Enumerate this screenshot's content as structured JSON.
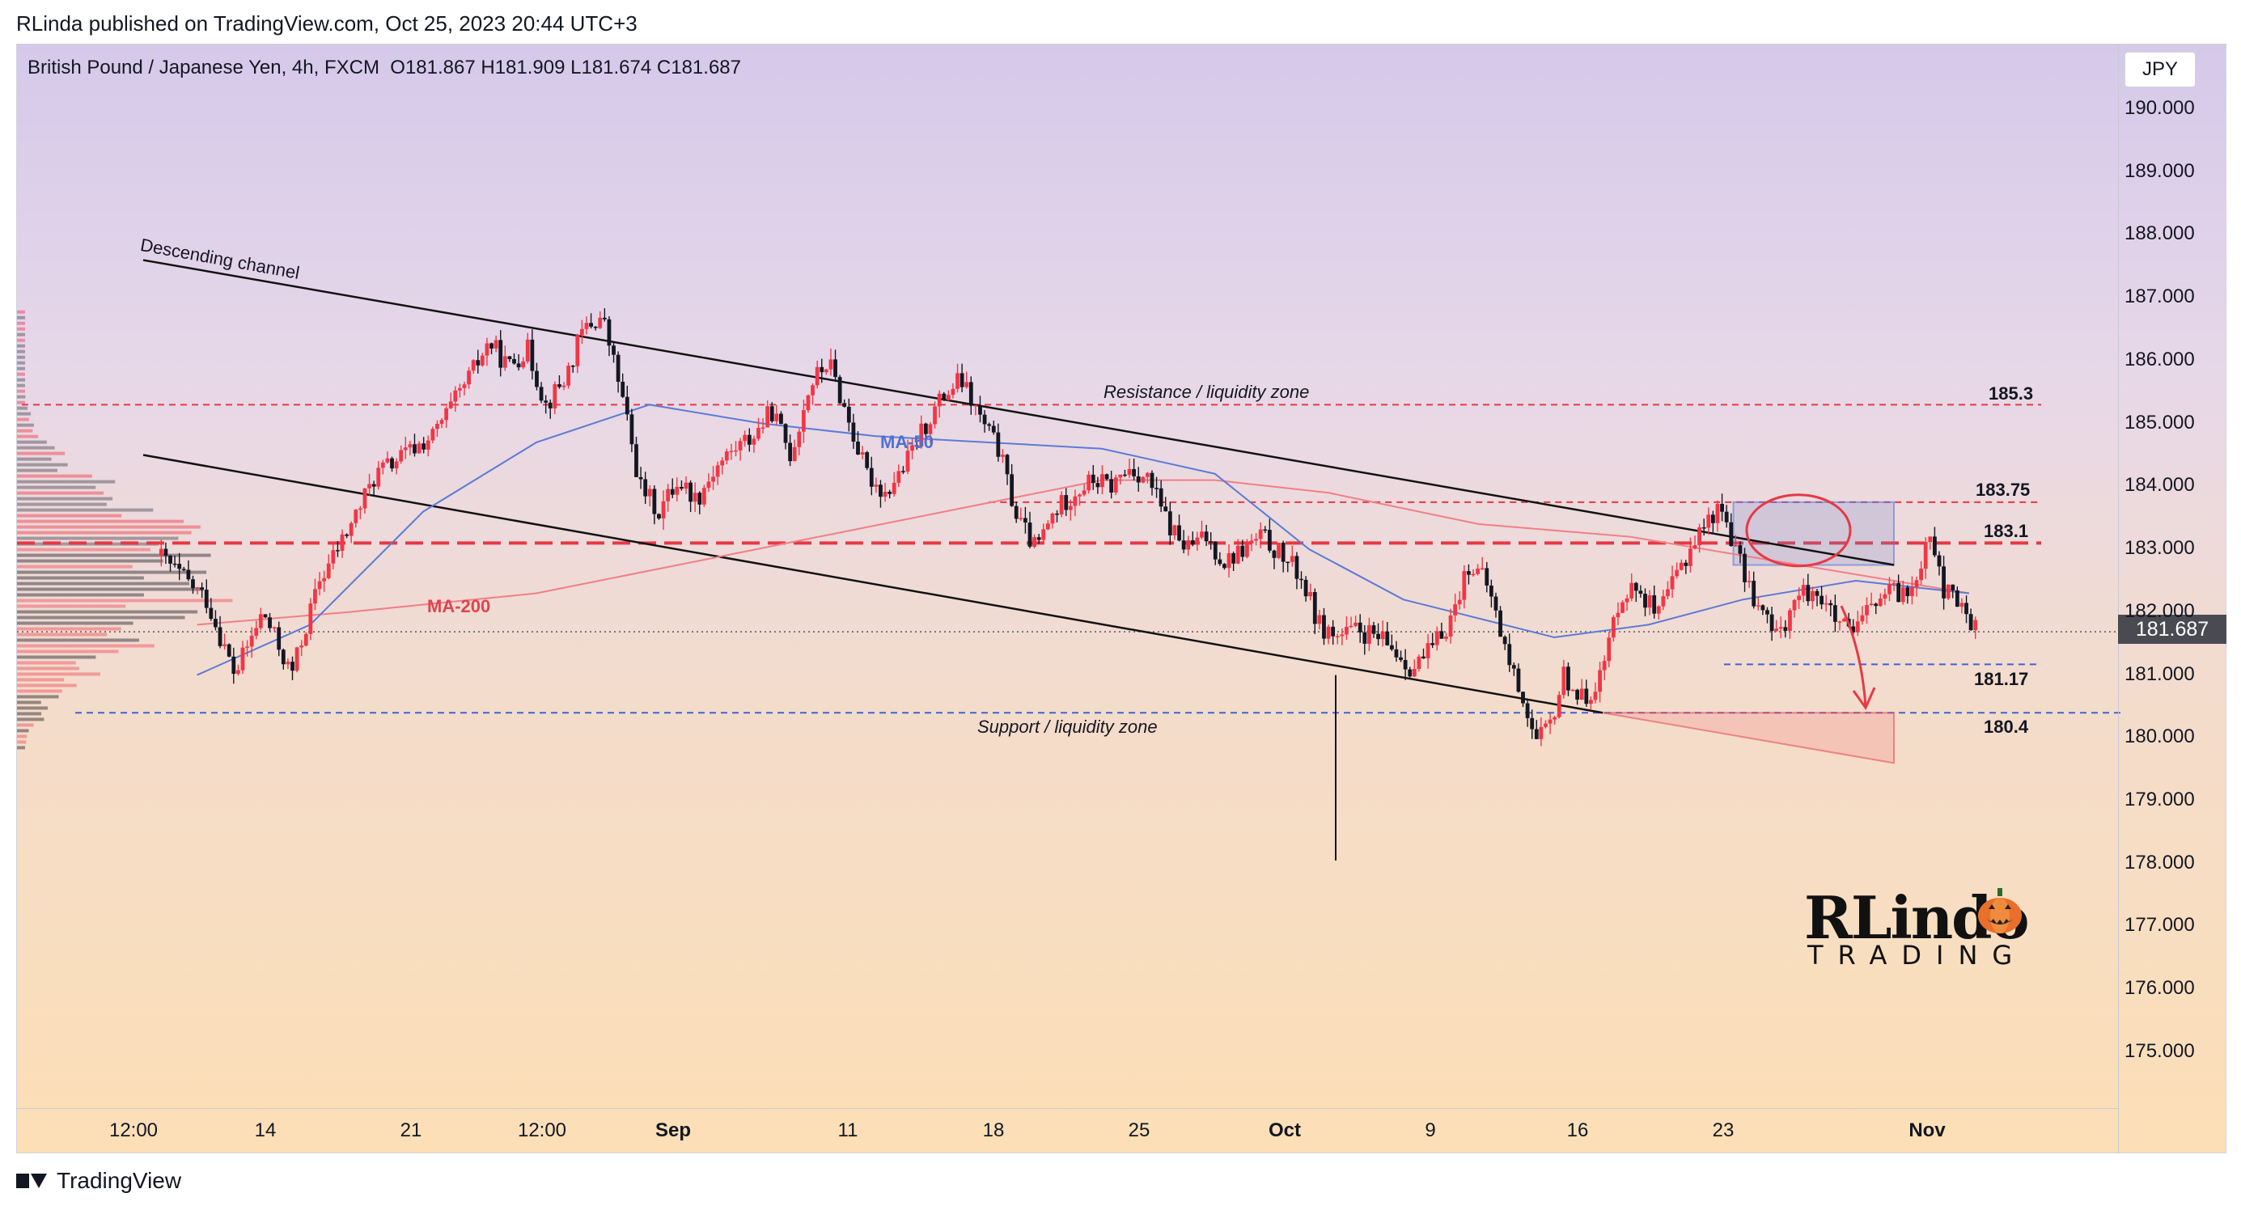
{
  "header": {
    "published": "RLinda published on TradingView.com, Oct 25, 2023 20:44 UTC+3"
  },
  "chart_title": {
    "symbol": "British Pound / Japanese Yen, 4h, FXCM",
    "ohlc": "O181.867  H181.909  L181.674  C181.687"
  },
  "currency": "JPY",
  "current_price": "181.687",
  "footer": {
    "brand": "TradingView"
  },
  "watermark": {
    "line1": "RLindo",
    "line2": "TRADING"
  },
  "annotations": {
    "descending_channel": "Descending channel",
    "resistance": "Resistance / liquidity zone",
    "support": "Support / liquidity zone",
    "ma50": "MA-50",
    "ma200": "MA-200"
  },
  "levels": {
    "l1853": "185.3",
    "l18375": "183.75",
    "l1831": "183.1",
    "l18117": "181.17",
    "l1804": "180.4"
  },
  "colors": {
    "bull": "#f23645",
    "bear": "#131722",
    "ma50": "#5b7bd5",
    "ma200": "#f07f86",
    "resistance": "#e53945",
    "support": "#3d63d6",
    "arrow": "#e53945"
  },
  "chart_data": {
    "type": "candlestick",
    "symbol": "GBPJPY",
    "timeframe": "4h",
    "ylim": [
      174.3,
      190.6
    ],
    "y_ticks": [
      "190.000",
      "189.000",
      "188.000",
      "187.000",
      "186.000",
      "185.000",
      "184.000",
      "183.000",
      "182.000",
      "181.000",
      "180.000",
      "179.000",
      "178.000",
      "177.000",
      "176.000",
      "175.000"
    ],
    "x_ticks": [
      {
        "label": "12:00",
        "bold": false
      },
      {
        "label": "14",
        "bold": false
      },
      {
        "label": "21",
        "bold": false
      },
      {
        "label": "12:00",
        "bold": false
      },
      {
        "label": "Sep",
        "bold": true
      },
      {
        "label": "11",
        "bold": false
      },
      {
        "label": "18",
        "bold": false
      },
      {
        "label": "25",
        "bold": false
      },
      {
        "label": "Oct",
        "bold": true
      },
      {
        "label": "9",
        "bold": false
      },
      {
        "label": "16",
        "bold": false
      },
      {
        "label": "23",
        "bold": false
      },
      {
        "label": "Nov",
        "bold": true
      }
    ],
    "horizontal_levels": [
      185.3,
      183.75,
      183.1,
      181.17,
      180.4
    ],
    "price_path": [
      [
        0,
        182.9
      ],
      [
        25,
        182.2
      ],
      [
        40,
        181.0
      ],
      [
        55,
        182.0
      ],
      [
        70,
        181.0
      ],
      [
        85,
        182.5
      ],
      [
        100,
        183.3
      ],
      [
        115,
        184.2
      ],
      [
        130,
        184.5
      ],
      [
        145,
        184.8
      ],
      [
        160,
        185.5
      ],
      [
        175,
        186.3
      ],
      [
        185,
        185.9
      ],
      [
        195,
        186.2
      ],
      [
        205,
        185.3
      ],
      [
        215,
        185.7
      ],
      [
        225,
        186.5
      ],
      [
        235,
        186.7
      ],
      [
        245,
        185.5
      ],
      [
        255,
        184.0
      ],
      [
        265,
        183.6
      ],
      [
        275,
        184.1
      ],
      [
        285,
        183.8
      ],
      [
        295,
        184.3
      ],
      [
        305,
        184.6
      ],
      [
        315,
        184.8
      ],
      [
        325,
        185.2
      ],
      [
        335,
        184.5
      ],
      [
        345,
        185.6
      ],
      [
        355,
        186.0
      ],
      [
        365,
        185.1
      ],
      [
        375,
        184.2
      ],
      [
        385,
        183.9
      ],
      [
        395,
        184.3
      ],
      [
        405,
        184.9
      ],
      [
        415,
        185.4
      ],
      [
        425,
        185.7
      ],
      [
        435,
        185.1
      ],
      [
        445,
        184.6
      ],
      [
        455,
        183.5
      ],
      [
        465,
        183.0
      ],
      [
        475,
        183.6
      ],
      [
        485,
        183.9
      ],
      [
        495,
        184.1
      ],
      [
        505,
        184.0
      ],
      [
        515,
        184.3
      ],
      [
        525,
        184.1
      ],
      [
        535,
        183.4
      ],
      [
        545,
        183.0
      ],
      [
        555,
        183.2
      ],
      [
        565,
        182.8
      ],
      [
        575,
        183.0
      ],
      [
        585,
        183.2
      ],
      [
        595,
        182.9
      ],
      [
        605,
        182.6
      ],
      [
        615,
        181.8
      ],
      [
        625,
        181.6
      ],
      [
        635,
        181.7
      ],
      [
        645,
        181.6
      ],
      [
        655,
        181.4
      ],
      [
        665,
        181.1
      ],
      [
        675,
        181.4
      ],
      [
        685,
        181.9
      ],
      [
        695,
        182.8
      ],
      [
        705,
        182.4
      ],
      [
        715,
        181.3
      ],
      [
        725,
        180.5
      ],
      [
        730,
        179.9
      ],
      [
        738,
        180.2
      ],
      [
        745,
        181.0
      ],
      [
        755,
        180.6
      ],
      [
        765,
        181.0
      ],
      [
        775,
        182.3
      ],
      [
        785,
        182.4
      ],
      [
        795,
        181.9
      ],
      [
        805,
        182.6
      ],
      [
        815,
        183.2
      ],
      [
        825,
        183.6
      ],
      [
        830,
        183.6
      ],
      [
        838,
        182.8
      ],
      [
        848,
        182.1
      ],
      [
        858,
        181.6
      ],
      [
        868,
        182.2
      ],
      [
        878,
        182.4
      ],
      [
        888,
        181.9
      ],
      [
        898,
        181.6
      ],
      [
        908,
        182.1
      ],
      [
        918,
        182.3
      ],
      [
        928,
        182.3
      ],
      [
        935,
        182.9
      ],
      [
        940,
        183.4
      ],
      [
        945,
        182.4
      ],
      [
        955,
        182.1
      ],
      [
        965,
        181.7
      ]
    ],
    "ma50_path": [
      [
        20,
        181.0
      ],
      [
        80,
        181.8
      ],
      [
        140,
        183.6
      ],
      [
        200,
        184.7
      ],
      [
        260,
        185.3
      ],
      [
        320,
        185.0
      ],
      [
        380,
        184.8
      ],
      [
        440,
        184.7
      ],
      [
        500,
        184.6
      ],
      [
        560,
        184.2
      ],
      [
        610,
        183.0
      ],
      [
        660,
        182.2
      ],
      [
        700,
        181.9
      ],
      [
        740,
        181.6
      ],
      [
        790,
        181.8
      ],
      [
        840,
        182.2
      ],
      [
        900,
        182.5
      ],
      [
        960,
        182.3
      ]
    ],
    "ma200_path": [
      [
        20,
        181.8
      ],
      [
        100,
        182.0
      ],
      [
        200,
        182.3
      ],
      [
        300,
        182.9
      ],
      [
        400,
        183.5
      ],
      [
        500,
        184.1
      ],
      [
        560,
        184.1
      ],
      [
        620,
        183.9
      ],
      [
        700,
        183.4
      ],
      [
        780,
        183.2
      ],
      [
        860,
        182.8
      ],
      [
        960,
        182.3
      ]
    ],
    "series": [
      {
        "name": "MA-50",
        "kind": "moving_average",
        "period": 50
      },
      {
        "name": "MA-200",
        "kind": "moving_average",
        "period": 200
      }
    ]
  }
}
